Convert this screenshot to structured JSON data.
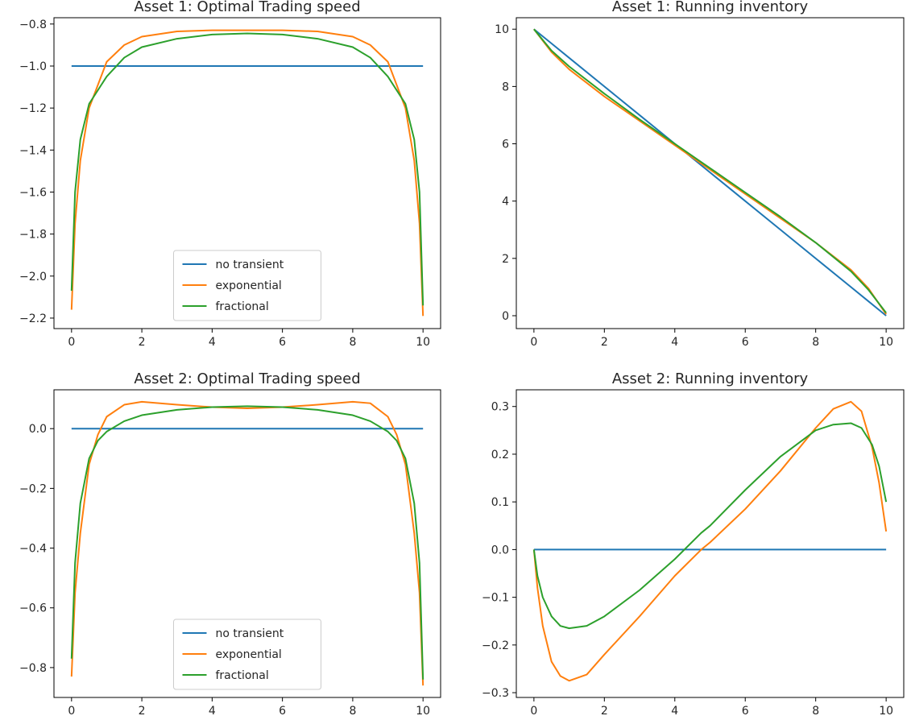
{
  "figure": {
    "panel_count": 4
  },
  "chart_data": [
    {
      "type": "line",
      "title": "Asset 1: Optimal Trading speed",
      "xlabel": "",
      "ylabel": "",
      "xlim": [
        -0.5,
        10.5
      ],
      "ylim": [
        -2.25,
        -0.77
      ],
      "xticks": [
        0,
        2,
        4,
        6,
        8,
        10
      ],
      "yticks": [
        -2.2,
        -2.0,
        -1.8,
        -1.6,
        -1.4,
        -1.2,
        -1.0,
        -0.8
      ],
      "x": [
        0,
        0.1,
        0.25,
        0.5,
        1,
        1.5,
        2,
        3,
        4,
        5,
        6,
        7,
        8,
        8.5,
        9,
        9.5,
        9.75,
        9.9,
        10
      ],
      "series": [
        {
          "name": "no transient",
          "color": "#1f77b4",
          "values": [
            -1.0,
            -1.0,
            -1.0,
            -1.0,
            -1.0,
            -1.0,
            -1.0,
            -1.0,
            -1.0,
            -1.0,
            -1.0,
            -1.0,
            -1.0,
            -1.0,
            -1.0,
            -1.0,
            -1.0,
            -1.0,
            -1.0
          ]
        },
        {
          "name": "exponential",
          "color": "#ff7f0e",
          "values": [
            -2.16,
            -1.75,
            -1.45,
            -1.2,
            -0.98,
            -0.9,
            -0.86,
            -0.835,
            -0.83,
            -0.83,
            -0.83,
            -0.835,
            -0.86,
            -0.9,
            -0.98,
            -1.2,
            -1.45,
            -1.75,
            -2.19
          ]
        },
        {
          "name": "fractional",
          "color": "#2ca02c",
          "values": [
            -2.07,
            -1.6,
            -1.35,
            -1.18,
            -1.05,
            -0.96,
            -0.91,
            -0.87,
            -0.85,
            -0.845,
            -0.85,
            -0.87,
            -0.91,
            -0.96,
            -1.05,
            -1.18,
            -1.35,
            -1.6,
            -2.14
          ]
        }
      ],
      "legend": {
        "position": "lower center"
      }
    },
    {
      "type": "line",
      "title": "Asset 1: Running inventory",
      "xlabel": "",
      "ylabel": "",
      "xlim": [
        -0.5,
        10.5
      ],
      "ylim": [
        -0.45,
        10.4
      ],
      "xticks": [
        0,
        2,
        4,
        6,
        8,
        10
      ],
      "yticks": [
        0,
        2,
        4,
        6,
        8,
        10
      ],
      "x": [
        0,
        0.5,
        1,
        2,
        3,
        4,
        5,
        6,
        7,
        8,
        9,
        9.5,
        10
      ],
      "series": [
        {
          "name": "no transient",
          "color": "#1f77b4",
          "values": [
            10,
            9.5,
            9,
            8,
            7,
            6,
            5,
            4,
            3,
            2,
            1,
            0.5,
            0
          ]
        },
        {
          "name": "exponential",
          "color": "#ff7f0e",
          "values": [
            10,
            9.2,
            8.6,
            7.65,
            6.8,
            5.95,
            5.1,
            4.25,
            3.4,
            2.55,
            1.6,
            0.95,
            0.05
          ]
        },
        {
          "name": "fractional",
          "color": "#2ca02c",
          "values": [
            10,
            9.25,
            8.7,
            7.75,
            6.85,
            6.0,
            5.15,
            4.3,
            3.45,
            2.55,
            1.55,
            0.9,
            0.1
          ]
        }
      ]
    },
    {
      "type": "line",
      "title": "Asset 2: Optimal Trading speed",
      "xlabel": "",
      "ylabel": "",
      "xlim": [
        -0.5,
        10.5
      ],
      "ylim": [
        -0.9,
        0.13
      ],
      "xticks": [
        0,
        2,
        4,
        6,
        8,
        10
      ],
      "yticks": [
        -0.8,
        -0.6,
        -0.4,
        -0.2,
        0.0
      ],
      "x": [
        0,
        0.1,
        0.25,
        0.5,
        0.75,
        1,
        1.5,
        2,
        3,
        4,
        5,
        6,
        7,
        8,
        8.5,
        9,
        9.25,
        9.5,
        9.75,
        9.9,
        10
      ],
      "series": [
        {
          "name": "no transient",
          "color": "#1f77b4",
          "values": [
            0,
            0,
            0,
            0,
            0,
            0,
            0,
            0,
            0,
            0,
            0,
            0,
            0,
            0,
            0,
            0,
            0,
            0,
            0,
            0,
            0
          ]
        },
        {
          "name": "exponential",
          "color": "#ff7f0e",
          "values": [
            -0.83,
            -0.55,
            -0.35,
            -0.12,
            -0.02,
            0.04,
            0.08,
            0.09,
            0.08,
            0.072,
            0.068,
            0.072,
            0.08,
            0.09,
            0.085,
            0.04,
            -0.02,
            -0.12,
            -0.35,
            -0.55,
            -0.86
          ]
        },
        {
          "name": "fractional",
          "color": "#2ca02c",
          "values": [
            -0.77,
            -0.45,
            -0.25,
            -0.1,
            -0.04,
            -0.01,
            0.025,
            0.045,
            0.063,
            0.072,
            0.075,
            0.072,
            0.063,
            0.045,
            0.025,
            -0.01,
            -0.04,
            -0.1,
            -0.25,
            -0.45,
            -0.84
          ]
        }
      ],
      "legend": {
        "position": "lower center"
      }
    },
    {
      "type": "line",
      "title": "Asset 2: Running inventory",
      "xlabel": "",
      "ylabel": "",
      "xlim": [
        -0.5,
        10.5
      ],
      "ylim": [
        -0.31,
        0.335
      ],
      "xticks": [
        0,
        2,
        4,
        6,
        8,
        10
      ],
      "yticks": [
        -0.3,
        -0.2,
        -0.1,
        0.0,
        0.1,
        0.2,
        0.3
      ],
      "x": [
        0,
        0.1,
        0.25,
        0.5,
        0.75,
        1,
        1.5,
        2,
        3,
        4,
        4.75,
        5,
        6,
        7,
        8,
        8.5,
        9,
        9.3,
        9.6,
        9.8,
        10
      ],
      "series": [
        {
          "name": "no transient",
          "color": "#1f77b4",
          "values": [
            0,
            0,
            0,
            0,
            0,
            0,
            0,
            0,
            0,
            0,
            0,
            0,
            0,
            0,
            0,
            0,
            0,
            0,
            0,
            0,
            0
          ]
        },
        {
          "name": "exponential",
          "color": "#ff7f0e",
          "values": [
            0,
            -0.08,
            -0.16,
            -0.235,
            -0.265,
            -0.275,
            -0.262,
            -0.22,
            -0.14,
            -0.055,
            0.0,
            0.015,
            0.085,
            0.165,
            0.255,
            0.295,
            0.31,
            0.29,
            0.215,
            0.14,
            0.038
          ]
        },
        {
          "name": "fractional",
          "color": "#2ca02c",
          "values": [
            0,
            -0.055,
            -0.1,
            -0.14,
            -0.16,
            -0.165,
            -0.16,
            -0.14,
            -0.085,
            -0.02,
            0.035,
            0.05,
            0.125,
            0.195,
            0.25,
            0.262,
            0.265,
            0.255,
            0.22,
            0.175,
            0.1
          ]
        }
      ]
    }
  ]
}
